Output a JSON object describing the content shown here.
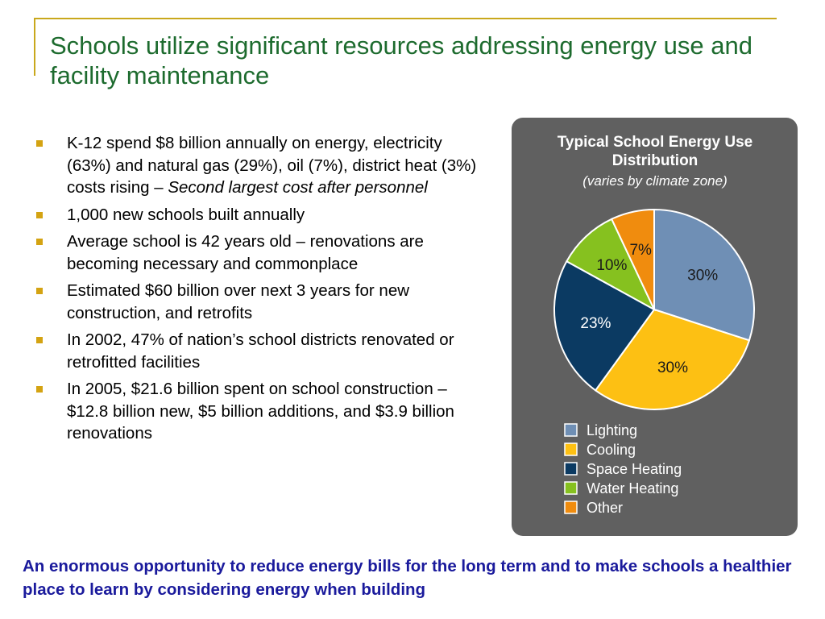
{
  "slide": {
    "title": "Schools utilize significant resources addressing energy use and facility maintenance",
    "bullets": [
      {
        "text": "K-12 spend $8 billion annually on energy, electricity (63%) and natural gas (29%), oil (7%), district heat (3%) costs rising – ",
        "emphasis": "Second largest cost after personnel"
      },
      {
        "text": "1,000 new schools built annually",
        "emphasis": ""
      },
      {
        "text": "Average school is 42 years old – renovations are becoming necessary and commonplace",
        "emphasis": ""
      },
      {
        "text": "Estimated $60 billion over next 3 years for new construction, and retrofits",
        "emphasis": ""
      },
      {
        "text": "In 2002, 47% of nation’s school districts renovated or retrofitted facilities",
        "emphasis": ""
      },
      {
        "text": "In 2005, $21.6 billion spent on school construction – $12.8 billion new, $5 billion additions, and $3.9 billion renovations",
        "emphasis": ""
      }
    ],
    "footer": "An enormous opportunity to reduce energy bills for the long term and to make schools a healthier place to learn by considering energy when building"
  },
  "colors": {
    "title": "#1d6b2e",
    "bullet_marker": "#d4a312",
    "frame_line": "#c9a81c",
    "footer": "#1a1a9c",
    "panel": "#606060"
  },
  "chart_data": {
    "type": "pie",
    "title": "Typical School Energy Use Distribution",
    "subtitle": "(varies by climate zone)",
    "start_angle_deg": 0,
    "direction": "clockwise",
    "legend_position": "bottom",
    "slices": [
      {
        "label": "Lighting",
        "value": 30,
        "data_label": "30%",
        "color": "#6f8fb5"
      },
      {
        "label": "Cooling",
        "value": 30,
        "data_label": "30%",
        "color": "#fdc013"
      },
      {
        "label": "Space Heating",
        "value": 23,
        "data_label": "23%",
        "color": "#0b3a62"
      },
      {
        "label": "Water Heating",
        "value": 10,
        "data_label": "10%",
        "color": "#86c11f"
      },
      {
        "label": "Other",
        "value": 7,
        "data_label": "7%",
        "color": "#f08c0e"
      }
    ]
  }
}
